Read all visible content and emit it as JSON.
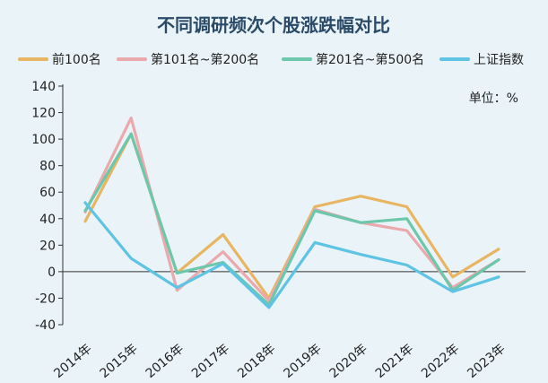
{
  "chart_data": {
    "type": "line",
    "title": "不同调研频次个股涨跌幅对比",
    "unit_label": "单位：%",
    "xlabel": "",
    "ylabel": "",
    "categories": [
      "2014年",
      "2015年",
      "2016年",
      "2017年",
      "2018年",
      "2019年",
      "2020年",
      "2021年",
      "2022年",
      "2023年"
    ],
    "ylim": [
      -40,
      140
    ],
    "yticks": [
      -40,
      -20,
      0,
      20,
      40,
      60,
      80,
      100,
      120,
      140
    ],
    "grid": false,
    "legend_position": "top",
    "series": [
      {
        "name": "前100名",
        "color": "#e8b563",
        "values": [
          38,
          104,
          -1,
          28,
          -20,
          49,
          57,
          49,
          -4,
          17
        ]
      },
      {
        "name": "第101名~第200名",
        "color": "#eba8ad",
        "values": [
          45,
          116,
          -14,
          15,
          -22,
          47,
          37,
          31,
          -12,
          9
        ]
      },
      {
        "name": "第201名~第500名",
        "color": "#6cc7ab",
        "values": [
          46,
          104,
          -1,
          7,
          -25,
          46,
          37,
          40,
          -14,
          9
        ]
      },
      {
        "name": "上证指数",
        "color": "#5fc3e4",
        "values": [
          52,
          10,
          -12,
          6,
          -27,
          22,
          13,
          5,
          -15,
          -4
        ]
      }
    ]
  }
}
